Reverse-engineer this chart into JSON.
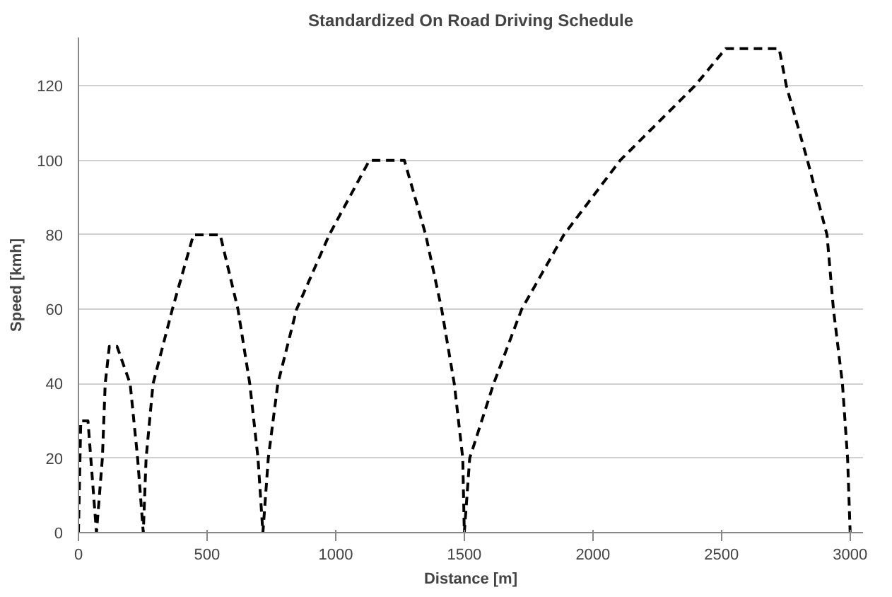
{
  "chart_data": {
    "type": "line",
    "title": "Standardized On Road Driving Schedule",
    "xlabel": "Distance [m]",
    "ylabel": "Speed [kmh]",
    "x": [
      0,
      9,
      37,
      70,
      93,
      104,
      120,
      150,
      201,
      230,
      252,
      263,
      290,
      365,
      447,
      551,
      620,
      666,
      698,
      717,
      738,
      775,
      848,
      975,
      1131,
      1267,
      1350,
      1412,
      1461,
      1494,
      1500,
      1521,
      1614,
      1723,
      1887,
      2106,
      2396,
      2516,
      2724,
      2752,
      2834,
      2910,
      2935,
      2970,
      2990,
      3000
    ],
    "series": [
      {
        "color": "#000000",
        "values": [
          0,
          30,
          30,
          0,
          20,
          40,
          50,
          50,
          40,
          20,
          0,
          20,
          40,
          60,
          80,
          80,
          60,
          40,
          20,
          0,
          20,
          40,
          60,
          80,
          100,
          100,
          80,
          60,
          40,
          20,
          0,
          20,
          40,
          60,
          80,
          100,
          120,
          130,
          130,
          120,
          100,
          80,
          60,
          40,
          20,
          0
        ]
      }
    ],
    "xlim": [
      0,
      3050
    ],
    "ylim": [
      0,
      133
    ],
    "xticks": [
      0,
      500,
      1000,
      1500,
      2000,
      2500,
      3000
    ],
    "yticks": [
      0,
      20,
      40,
      60,
      80,
      100,
      120
    ],
    "grid": "y",
    "line_style": "dashed"
  }
}
